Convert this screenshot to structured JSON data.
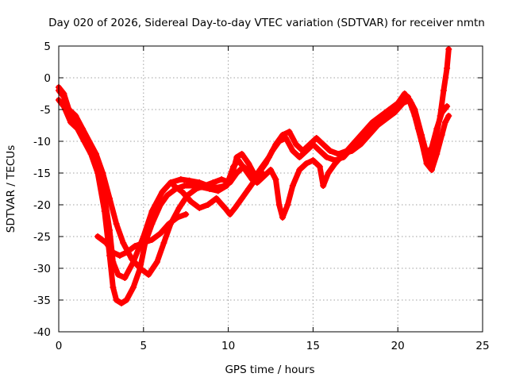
{
  "chart_data": {
    "type": "scatter",
    "title": "Day 020 of 2026, Sidereal Day-to-day VTEC variation (SDTVAR) for receiver nmtn",
    "xlabel": "GPS time / hours",
    "ylabel": "SDTVAR / TECUs",
    "xlim": [
      0,
      25
    ],
    "ylim": [
      -40,
      5
    ],
    "xticks": [
      "0",
      "5",
      "10",
      "15",
      "20",
      "25"
    ],
    "yticks": [
      "5",
      "0",
      "-5",
      "-10",
      "-15",
      "-20",
      "-25",
      "-30",
      "-35",
      "-40"
    ],
    "grid": true,
    "marker": "plus",
    "color": "#ff0000",
    "series": [
      {
        "points": [
          [
            0.0,
            -2.0
          ],
          [
            0.3,
            -3.0
          ],
          [
            0.6,
            -6.0
          ],
          [
            1.0,
            -7.0
          ],
          [
            1.4,
            -9.0
          ],
          [
            1.8,
            -11.0
          ],
          [
            2.2,
            -13.0
          ],
          [
            2.6,
            -17.0
          ],
          [
            3.0,
            -24.0
          ],
          [
            3.2,
            -29.0
          ],
          [
            3.5,
            -31.0
          ],
          [
            3.9,
            -31.5
          ],
          [
            4.4,
            -29.0
          ],
          [
            5.0,
            -25.0
          ],
          [
            5.5,
            -21.0
          ],
          [
            6.1,
            -18.0
          ],
          [
            6.6,
            -16.5
          ],
          [
            7.2,
            -16.0
          ],
          [
            7.7,
            -16.2
          ],
          [
            8.3,
            -16.5
          ],
          [
            8.8,
            -17.0
          ],
          [
            9.3,
            -17.3
          ],
          [
            9.8,
            -17.0
          ],
          [
            10.2,
            -15.5
          ],
          [
            10.5,
            -12.5
          ],
          [
            10.8,
            -12.0
          ],
          [
            11.2,
            -13.5
          ],
          [
            11.6,
            -15.5
          ],
          [
            12.0,
            -14.0
          ],
          [
            12.4,
            -12.5
          ],
          [
            12.8,
            -10.5
          ],
          [
            13.2,
            -9.0
          ],
          [
            13.6,
            -8.5
          ],
          [
            14.0,
            -10.5
          ],
          [
            14.4,
            -11.5
          ],
          [
            14.8,
            -10.5
          ],
          [
            15.2,
            -9.5
          ],
          [
            15.6,
            -10.5
          ],
          [
            16.0,
            -11.5
          ],
          [
            16.5,
            -12.0
          ],
          [
            17.0,
            -11.5
          ],
          [
            17.5,
            -10.0
          ],
          [
            18.0,
            -8.5
          ],
          [
            18.5,
            -7.0
          ],
          [
            19.0,
            -6.0
          ],
          [
            19.5,
            -5.0
          ],
          [
            20.0,
            -4.0
          ],
          [
            20.4,
            -2.5
          ],
          [
            20.8,
            -4.0
          ],
          [
            21.2,
            -8.0
          ],
          [
            21.6,
            -12.0
          ],
          [
            21.9,
            -13.5
          ],
          [
            22.2,
            -10.0
          ],
          [
            22.5,
            -6.0
          ],
          [
            22.7,
            -2.0
          ],
          [
            22.9,
            1.5
          ],
          [
            23.0,
            4.5
          ]
        ]
      },
      {
        "points": [
          [
            0.0,
            -3.5
          ],
          [
            0.3,
            -4.5
          ],
          [
            0.7,
            -7.0
          ],
          [
            1.1,
            -8.0
          ],
          [
            1.5,
            -10.0
          ],
          [
            1.9,
            -12.0
          ],
          [
            2.3,
            -15.0
          ],
          [
            2.7,
            -21.0
          ],
          [
            3.0,
            -28.0
          ],
          [
            3.2,
            -33.0
          ],
          [
            3.4,
            -35.0
          ],
          [
            3.7,
            -35.5
          ],
          [
            4.0,
            -35.0
          ],
          [
            4.4,
            -33.0
          ],
          [
            4.8,
            -30.0
          ],
          [
            5.1,
            -26.0
          ],
          [
            5.5,
            -23.0
          ],
          [
            6.0,
            -20.0
          ],
          [
            6.4,
            -18.5
          ],
          [
            6.9,
            -17.5
          ],
          [
            7.4,
            -17.0
          ],
          [
            7.9,
            -17.0
          ],
          [
            8.4,
            -17.2
          ],
          [
            8.9,
            -17.5
          ],
          [
            9.4,
            -17.8
          ],
          [
            9.9,
            -17.0
          ],
          [
            10.3,
            -14.0
          ],
          [
            10.6,
            -13.0
          ],
          [
            11.0,
            -14.5
          ],
          [
            11.4,
            -16.0
          ],
          [
            11.8,
            -15.0
          ],
          [
            12.2,
            -13.5
          ],
          [
            12.6,
            -11.5
          ],
          [
            13.0,
            -10.0
          ],
          [
            13.4,
            -9.5
          ],
          [
            13.8,
            -11.5
          ],
          [
            14.2,
            -12.5
          ],
          [
            14.6,
            -11.5
          ],
          [
            15.0,
            -10.5
          ],
          [
            15.4,
            -11.5
          ],
          [
            15.8,
            -12.5
          ],
          [
            16.3,
            -13.0
          ],
          [
            16.8,
            -12.5
          ],
          [
            17.3,
            -11.0
          ],
          [
            17.8,
            -9.5
          ],
          [
            18.3,
            -8.0
          ],
          [
            18.8,
            -7.0
          ],
          [
            19.3,
            -6.0
          ],
          [
            19.8,
            -5.0
          ],
          [
            20.2,
            -3.5
          ],
          [
            20.6,
            -3.0
          ],
          [
            21.0,
            -6.0
          ],
          [
            21.4,
            -10.0
          ],
          [
            21.7,
            -13.5
          ],
          [
            22.0,
            -14.5
          ],
          [
            22.3,
            -12.0
          ],
          [
            22.6,
            -9.0
          ],
          [
            22.8,
            -7.0
          ],
          [
            23.0,
            -6.0
          ]
        ]
      },
      {
        "points": [
          [
            0.0,
            -1.5
          ],
          [
            0.3,
            -2.5
          ],
          [
            0.6,
            -5.0
          ],
          [
            1.0,
            -6.0
          ],
          [
            1.4,
            -8.0
          ],
          [
            1.8,
            -10.0
          ],
          [
            2.2,
            -12.0
          ],
          [
            2.6,
            -15.0
          ],
          [
            3.0,
            -19.0
          ],
          [
            3.4,
            -23.0
          ],
          [
            3.8,
            -26.0
          ],
          [
            4.3,
            -28.5
          ],
          [
            4.8,
            -30.0
          ],
          [
            5.3,
            -31.0
          ],
          [
            5.8,
            -29.0
          ],
          [
            6.2,
            -26.0
          ],
          [
            6.6,
            -23.0
          ],
          [
            7.1,
            -20.5
          ],
          [
            7.6,
            -18.5
          ],
          [
            8.1,
            -17.5
          ],
          [
            8.6,
            -17.0
          ],
          [
            9.1,
            -16.5
          ],
          [
            9.6,
            -16.0
          ],
          [
            10.1,
            -16.5
          ],
          [
            10.5,
            -15.0
          ],
          [
            10.9,
            -14.0
          ],
          [
            11.3,
            -15.0
          ],
          [
            11.7,
            -16.5
          ],
          [
            12.1,
            -15.5
          ],
          [
            12.5,
            -14.5
          ],
          [
            12.8,
            -16.0
          ],
          [
            13.0,
            -20.0
          ],
          [
            13.2,
            -22.0
          ],
          [
            13.5,
            -20.0
          ],
          [
            13.8,
            -17.0
          ],
          [
            14.2,
            -14.5
          ],
          [
            14.6,
            -13.5
          ],
          [
            15.0,
            -13.0
          ],
          [
            15.4,
            -14.0
          ],
          [
            15.6,
            -17.0
          ],
          [
            15.9,
            -15.0
          ],
          [
            16.3,
            -13.5
          ],
          [
            16.8,
            -12.0
          ],
          [
            17.3,
            -11.5
          ],
          [
            17.8,
            -10.5
          ],
          [
            18.3,
            -9.0
          ],
          [
            18.8,
            -7.5
          ],
          [
            19.3,
            -6.5
          ],
          [
            19.8,
            -5.5
          ],
          [
            20.3,
            -4.0
          ],
          [
            20.7,
            -3.5
          ],
          [
            21.0,
            -5.0
          ],
          [
            21.4,
            -9.0
          ],
          [
            21.7,
            -12.0
          ],
          [
            22.0,
            -11.0
          ],
          [
            22.3,
            -8.0
          ],
          [
            22.6,
            -5.5
          ],
          [
            22.9,
            -4.5
          ]
        ]
      },
      {
        "points": [
          [
            2.3,
            -25.0
          ],
          [
            2.8,
            -26.0
          ],
          [
            3.2,
            -27.5
          ],
          [
            3.6,
            -28.0
          ],
          [
            4.0,
            -27.5
          ],
          [
            4.5,
            -26.5
          ],
          [
            5.0,
            -26.0
          ],
          [
            5.5,
            -25.5
          ],
          [
            6.0,
            -24.5
          ],
          [
            6.5,
            -23.0
          ],
          [
            7.0,
            -22.0
          ],
          [
            7.5,
            -21.5
          ]
        ]
      },
      {
        "points": [
          [
            6.8,
            -17.0
          ],
          [
            7.3,
            -18.0
          ],
          [
            7.8,
            -19.5
          ],
          [
            8.3,
            -20.5
          ],
          [
            8.8,
            -20.0
          ],
          [
            9.3,
            -19.0
          ],
          [
            9.8,
            -20.5
          ],
          [
            10.1,
            -21.5
          ],
          [
            10.4,
            -20.5
          ],
          [
            10.8,
            -19.0
          ],
          [
            11.2,
            -17.5
          ],
          [
            11.6,
            -16.0
          ],
          [
            12.0,
            -15.0
          ]
        ]
      }
    ]
  }
}
